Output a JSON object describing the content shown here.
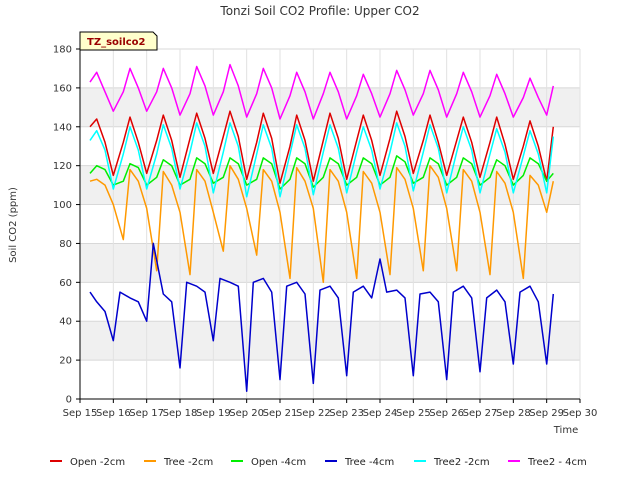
{
  "chart_data": {
    "type": "line",
    "title": "Tonzi Soil CO2 Profile: Upper CO2",
    "xlabel": "Time",
    "ylabel": "Soil CO2 (ppm)",
    "xlim": [
      15,
      30
    ],
    "ylim": [
      0,
      180
    ],
    "x_ticks": [
      15,
      16,
      17,
      18,
      19,
      20,
      21,
      22,
      23,
      24,
      25,
      26,
      27,
      28,
      29,
      30
    ],
    "x_tick_labels": [
      "Sep 15",
      "Sep 16",
      "Sep 17",
      "Sep 18",
      "Sep 19",
      "Sep 20",
      "Sep 21",
      "Sep 22",
      "Sep 23",
      "Sep 24",
      "Sep 25",
      "Sep 26",
      "Sep 27",
      "Sep 28",
      "Sep 29",
      "Sep 30"
    ],
    "y_ticks": [
      0,
      20,
      40,
      60,
      80,
      100,
      120,
      140,
      160,
      180
    ],
    "y_tick_labels": [
      "0",
      "20",
      "40",
      "60",
      "80",
      "100",
      "120",
      "140",
      "160",
      "180"
    ],
    "band_ranges": [
      [
        20,
        40
      ],
      [
        60,
        80
      ],
      [
        100,
        120
      ],
      [
        140,
        160
      ]
    ],
    "site_tag": "TZ_soilco2",
    "legend_position": "bottom",
    "series": [
      {
        "name": "Open -2cm",
        "color": "#dd0000",
        "x": [
          15.3,
          15.5,
          15.75,
          16.0,
          16.3,
          16.5,
          16.75,
          17.0,
          17.3,
          17.5,
          17.75,
          18.0,
          18.3,
          18.5,
          18.75,
          19.0,
          19.3,
          19.5,
          19.75,
          20.0,
          20.3,
          20.5,
          20.75,
          21.0,
          21.3,
          21.5,
          21.75,
          22.0,
          22.3,
          22.5,
          22.75,
          23.0,
          23.3,
          23.5,
          23.75,
          24.0,
          24.3,
          24.5,
          24.75,
          25.0,
          25.3,
          25.5,
          25.75,
          26.0,
          26.3,
          26.5,
          26.75,
          27.0,
          27.3,
          27.5,
          27.75,
          28.0,
          28.3,
          28.5,
          28.75,
          29.0,
          29.2
        ],
        "values": [
          140,
          144,
          132,
          115,
          132,
          145,
          132,
          116,
          133,
          146,
          133,
          114,
          134,
          147,
          134,
          116,
          135,
          148,
          135,
          113,
          132,
          147,
          134,
          111,
          130,
          146,
          133,
          112,
          133,
          147,
          134,
          113,
          133,
          146,
          133,
          115,
          134,
          148,
          135,
          116,
          133,
          146,
          132,
          115,
          133,
          145,
          132,
          114,
          132,
          145,
          131,
          113,
          130,
          143,
          130,
          112,
          140
        ]
      },
      {
        "name": "Tree -2cm",
        "color": "#ff9900",
        "x": [
          15.3,
          15.5,
          15.75,
          16.0,
          16.3,
          16.5,
          16.75,
          17.0,
          17.3,
          17.5,
          17.75,
          18.0,
          18.3,
          18.5,
          18.75,
          19.0,
          19.3,
          19.5,
          19.75,
          20.0,
          20.3,
          20.5,
          20.75,
          21.0,
          21.3,
          21.5,
          21.75,
          22.0,
          22.3,
          22.5,
          22.75,
          23.0,
          23.3,
          23.5,
          23.75,
          24.0,
          24.3,
          24.5,
          24.75,
          25.0,
          25.3,
          25.5,
          25.75,
          26.0,
          26.3,
          26.5,
          26.75,
          27.0,
          27.3,
          27.5,
          27.75,
          28.0,
          28.3,
          28.5,
          28.75,
          29.0,
          29.2
        ],
        "values": [
          112,
          113,
          110,
          100,
          82,
          118,
          112,
          98,
          66,
          117,
          110,
          96,
          64,
          118,
          112,
          96,
          76,
          120,
          113,
          98,
          74,
          118,
          112,
          96,
          62,
          119,
          112,
          98,
          60,
          118,
          112,
          96,
          62,
          117,
          111,
          96,
          64,
          119,
          113,
          98,
          66,
          120,
          114,
          98,
          66,
          118,
          112,
          96,
          64,
          117,
          111,
          96,
          62,
          115,
          110,
          96,
          112
        ]
      },
      {
        "name": "Open -4cm",
        "color": "#00ee00",
        "x": [
          15.3,
          15.5,
          15.75,
          16.0,
          16.3,
          16.5,
          16.75,
          17.0,
          17.3,
          17.5,
          17.75,
          18.0,
          18.3,
          18.5,
          18.75,
          19.0,
          19.3,
          19.5,
          19.75,
          20.0,
          20.3,
          20.5,
          20.75,
          21.0,
          21.3,
          21.5,
          21.75,
          22.0,
          22.3,
          22.5,
          22.75,
          23.0,
          23.3,
          23.5,
          23.75,
          24.0,
          24.3,
          24.5,
          24.75,
          25.0,
          25.3,
          25.5,
          25.75,
          26.0,
          26.3,
          26.5,
          26.75,
          27.0,
          27.3,
          27.5,
          27.75,
          28.0,
          28.3,
          28.5,
          28.75,
          29.0,
          29.2
        ],
        "values": [
          116,
          120,
          118,
          110,
          112,
          121,
          119,
          110,
          114,
          123,
          120,
          110,
          113,
          124,
          121,
          111,
          114,
          124,
          121,
          110,
          113,
          124,
          121,
          108,
          113,
          124,
          121,
          109,
          114,
          124,
          121,
          110,
          114,
          124,
          121,
          110,
          114,
          125,
          122,
          111,
          114,
          124,
          121,
          110,
          114,
          124,
          121,
          110,
          114,
          123,
          120,
          110,
          115,
          124,
          121,
          112,
          116
        ]
      },
      {
        "name": "Tree -4cm",
        "color": "#0000cc",
        "x": [
          15.3,
          15.5,
          15.75,
          16.0,
          16.2,
          16.5,
          16.75,
          17.0,
          17.2,
          17.5,
          17.75,
          18.0,
          18.2,
          18.5,
          18.75,
          19.0,
          19.2,
          19.5,
          19.75,
          20.0,
          20.2,
          20.5,
          20.75,
          21.0,
          21.2,
          21.5,
          21.75,
          22.0,
          22.2,
          22.5,
          22.75,
          23.0,
          23.2,
          23.5,
          23.75,
          24.0,
          24.2,
          24.5,
          24.75,
          25.0,
          25.2,
          25.5,
          25.75,
          26.0,
          26.2,
          26.5,
          26.75,
          27.0,
          27.2,
          27.5,
          27.75,
          28.0,
          28.2,
          28.5,
          28.75,
          29.0,
          29.2
        ],
        "values": [
          55,
          50,
          45,
          30,
          55,
          52,
          50,
          40,
          80,
          54,
          50,
          16,
          60,
          58,
          55,
          30,
          62,
          60,
          58,
          4,
          60,
          62,
          55,
          10,
          58,
          60,
          54,
          8,
          56,
          58,
          52,
          12,
          55,
          58,
          52,
          72,
          55,
          56,
          52,
          12,
          54,
          55,
          50,
          10,
          55,
          58,
          52,
          14,
          52,
          56,
          50,
          18,
          55,
          58,
          50,
          18,
          54
        ]
      },
      {
        "name": "Tree2 -2cm",
        "color": "#00ffff",
        "x": [
          15.3,
          15.5,
          15.75,
          16.0,
          16.3,
          16.5,
          16.75,
          17.0,
          17.3,
          17.5,
          17.75,
          18.0,
          18.3,
          18.5,
          18.75,
          19.0,
          19.3,
          19.5,
          19.75,
          20.0,
          20.3,
          20.5,
          20.75,
          21.0,
          21.3,
          21.5,
          21.75,
          22.0,
          22.3,
          22.5,
          22.75,
          23.0,
          23.3,
          23.5,
          23.75,
          24.0,
          24.3,
          24.5,
          24.75,
          25.0,
          25.3,
          25.5,
          25.75,
          26.0,
          26.3,
          26.5,
          26.75,
          27.0,
          27.3,
          27.5,
          27.75,
          28.0,
          28.3,
          28.5,
          28.75,
          29.0,
          29.2
        ],
        "values": [
          133,
          138,
          128,
          108,
          126,
          140,
          128,
          108,
          126,
          141,
          129,
          108,
          127,
          142,
          130,
          106,
          127,
          142,
          130,
          104,
          126,
          141,
          129,
          104,
          126,
          141,
          129,
          105,
          127,
          141,
          129,
          106,
          127,
          140,
          128,
          108,
          127,
          142,
          130,
          107,
          127,
          141,
          129,
          106,
          127,
          140,
          128,
          106,
          126,
          139,
          127,
          106,
          125,
          138,
          126,
          106,
          135
        ]
      },
      {
        "name": "Tree2 - 4cm",
        "color": "#ff00ff",
        "x": [
          15.3,
          15.5,
          15.75,
          16.0,
          16.3,
          16.5,
          16.75,
          17.0,
          17.3,
          17.5,
          17.75,
          18.0,
          18.3,
          18.5,
          18.75,
          19.0,
          19.3,
          19.5,
          19.75,
          20.0,
          20.3,
          20.5,
          20.75,
          21.0,
          21.3,
          21.5,
          21.75,
          22.0,
          22.3,
          22.5,
          22.75,
          23.0,
          23.3,
          23.5,
          23.75,
          24.0,
          24.3,
          24.5,
          24.75,
          25.0,
          25.3,
          25.5,
          25.75,
          26.0,
          26.3,
          26.5,
          26.75,
          27.0,
          27.3,
          27.5,
          27.75,
          28.0,
          28.3,
          28.5,
          28.75,
          29.0,
          29.2
        ],
        "values": [
          163,
          168,
          158,
          148,
          158,
          170,
          160,
          148,
          158,
          170,
          160,
          146,
          157,
          171,
          161,
          146,
          158,
          172,
          161,
          145,
          157,
          170,
          160,
          144,
          156,
          168,
          158,
          144,
          157,
          168,
          158,
          144,
          156,
          167,
          157,
          145,
          157,
          169,
          159,
          146,
          157,
          169,
          159,
          145,
          157,
          168,
          158,
          145,
          156,
          167,
          157,
          145,
          155,
          165,
          155,
          146,
          161
        ]
      }
    ]
  }
}
